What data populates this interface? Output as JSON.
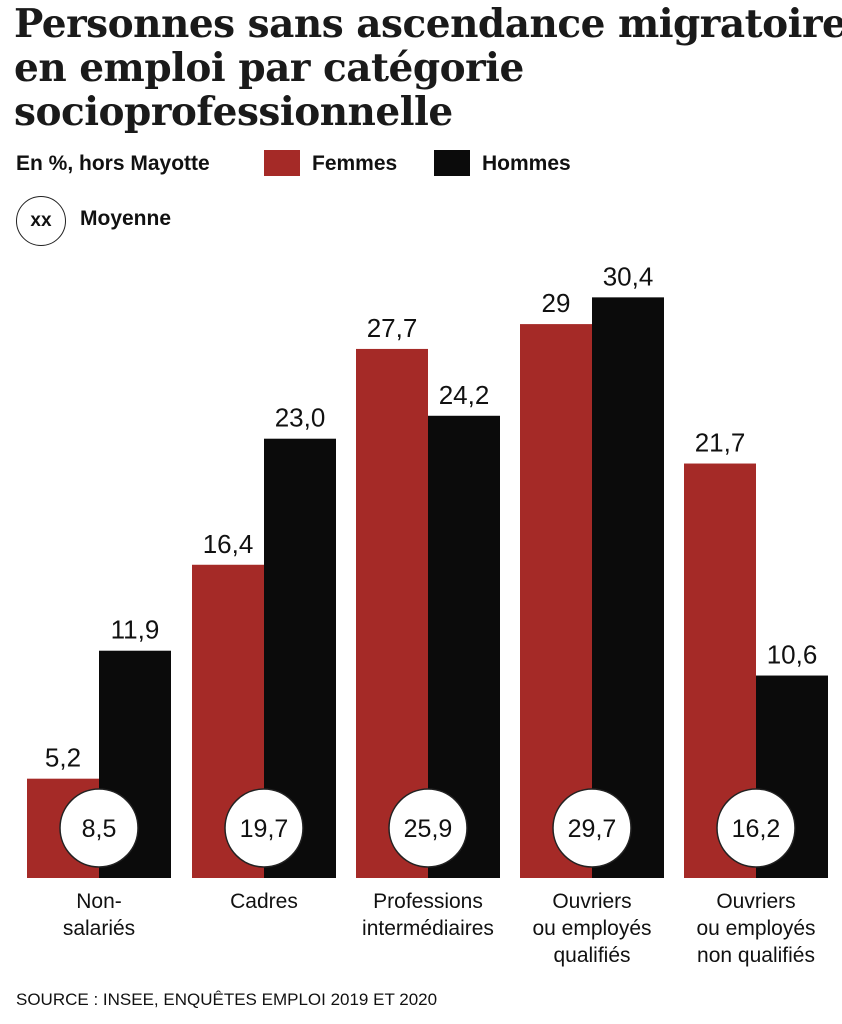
{
  "title": {
    "line1": "Personnes sans ascendance migratoire",
    "line2": "en emploi par catégorie",
    "line3": "socioprofessionnelle"
  },
  "legend": {
    "unit": "En %, hors Mayotte",
    "femmes": "Femmes",
    "hommes": "Hommes",
    "avg_symbol": "xx",
    "avg_label": "Moyenne"
  },
  "colors": {
    "femmes": "#a52a27",
    "hommes": "#0b0b0b"
  },
  "chart_data": {
    "type": "bar",
    "categories": [
      [
        "Non-",
        "salariés"
      ],
      [
        "Cadres"
      ],
      [
        "Professions",
        "intermédiaires"
      ],
      [
        "Ouvriers",
        "ou employés",
        "qualifiés"
      ],
      [
        "Ouvriers",
        "ou employés",
        "non qualifiés"
      ]
    ],
    "series": [
      {
        "name": "Femmes",
        "values": [
          5.2,
          16.4,
          27.7,
          29,
          21.7
        ],
        "labels": [
          "5,2",
          "16,4",
          "27,7",
          "29",
          "21,7"
        ]
      },
      {
        "name": "Hommes",
        "values": [
          11.9,
          23.0,
          24.2,
          30.4,
          10.6
        ],
        "labels": [
          "11,9",
          "23,0",
          "24,2",
          "30,4",
          "10,6"
        ]
      }
    ],
    "average": {
      "name": "Moyenne",
      "values": [
        8.5,
        19.7,
        25.9,
        29.7,
        16.2
      ],
      "labels": [
        "8,5",
        "19,7",
        "25,9",
        "29,7",
        "16,2"
      ]
    },
    "ylim": [
      0,
      30.4
    ],
    "grid": false,
    "legend_position": "top-left"
  },
  "source": "SOURCE : INSEE, ENQUÊTES EMPLOI 2019 ET 2020"
}
